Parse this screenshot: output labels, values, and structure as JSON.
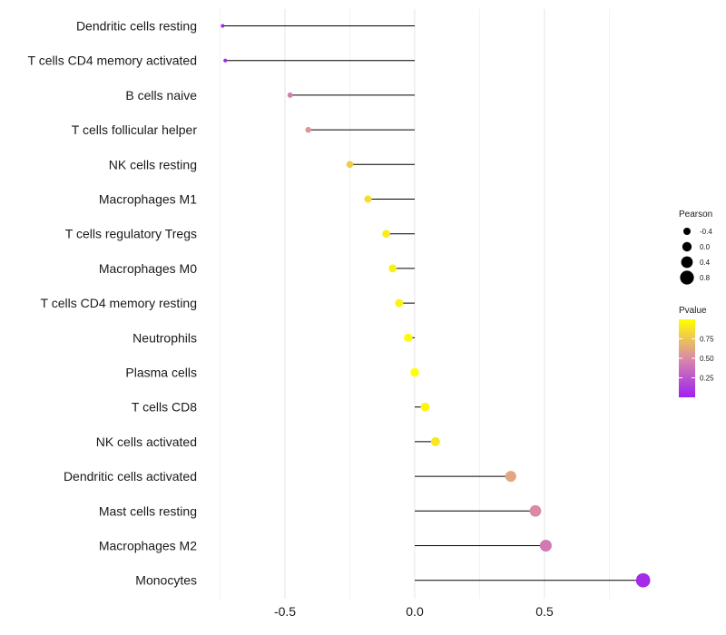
{
  "chart_data": {
    "type": "lollipop",
    "title": "",
    "xlabel": "",
    "ylabel": "",
    "xlim": [
      -0.75,
      0.9
    ],
    "xticks": [
      -0.5,
      0.0,
      0.5
    ],
    "xtick_labels": [
      "-0.5",
      "0.0",
      "0.5"
    ],
    "grid": true,
    "categories": [
      "Dendritic cells resting",
      "T cells CD4 memory activated",
      "B cells naive",
      "T cells follicular helper",
      "NK cells resting",
      "Macrophages M1",
      "T cells regulatory  Tregs ",
      "Macrophages M0",
      "T cells CD4 memory resting",
      "Neutrophils",
      "Plasma cells",
      "T cells CD8",
      "NK cells activated",
      "Dendritic cells activated",
      "Mast cells resting",
      "Macrophages M2",
      "Monocytes"
    ],
    "values": [
      -0.74,
      -0.73,
      -0.48,
      -0.41,
      -0.25,
      -0.18,
      -0.11,
      -0.085,
      -0.06,
      -0.025,
      0.0,
      0.04,
      0.08,
      0.37,
      0.465,
      0.505,
      0.88
    ],
    "pvalues": [
      0.02,
      0.03,
      0.45,
      0.55,
      0.78,
      0.85,
      0.92,
      0.94,
      0.95,
      0.98,
      1.0,
      0.96,
      0.9,
      0.62,
      0.5,
      0.42,
      0.05
    ],
    "legend_size": {
      "title": "Pearson",
      "labels": [
        "-0.4",
        "0.0",
        "0.4",
        "0.8"
      ],
      "values": [
        -0.4,
        0.0,
        0.4,
        0.8
      ]
    },
    "legend_color": {
      "title": "Pvalue",
      "labels": [
        "0.75",
        "0.50",
        "0.25"
      ],
      "values": [
        0.75,
        0.5,
        0.25
      ],
      "range": [
        0.0,
        1.0
      ],
      "low_color": "#a020f0",
      "mid_color": "#d98aa8",
      "high_color": "#ffff00"
    },
    "legend_position": "right"
  }
}
